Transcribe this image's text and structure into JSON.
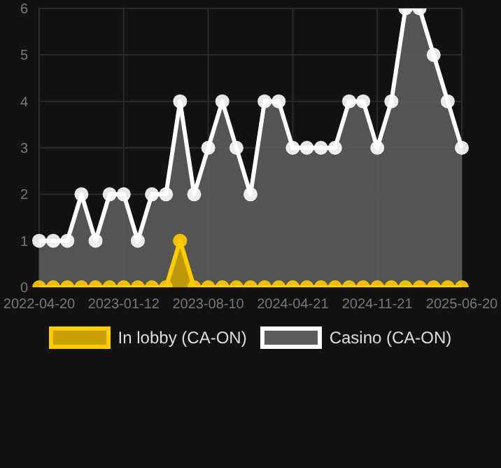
{
  "chart_data": {
    "type": "area",
    "categories": [
      "2022-04-20",
      null,
      null,
      null,
      null,
      null,
      "2023-01-12",
      null,
      null,
      null,
      null,
      null,
      "2023-08-10",
      null,
      null,
      null,
      null,
      null,
      "2024-04-21",
      null,
      null,
      null,
      null,
      null,
      "2024-11-21",
      null,
      null,
      null,
      null,
      null,
      "2025-06-20"
    ],
    "series": [
      {
        "name": "In lobby (CA-ON)",
        "color": "#ffcc00",
        "values": [
          0,
          0,
          0,
          0,
          0,
          0,
          0,
          0,
          0,
          0,
          1,
          0,
          0,
          0,
          0,
          0,
          0,
          0,
          0,
          0,
          0,
          0,
          0,
          0,
          0,
          0,
          0,
          0,
          0,
          0,
          0
        ]
      },
      {
        "name": "Casino (CA-ON)",
        "color": "#ffffff",
        "values": [
          1,
          1,
          1,
          2,
          1,
          2,
          2,
          1,
          2,
          2,
          4,
          2,
          3,
          4,
          3,
          2,
          4,
          4,
          3,
          3,
          3,
          3,
          4,
          4,
          3,
          4,
          6,
          6,
          5,
          4,
          3
        ]
      }
    ],
    "ylim": [
      0,
      6
    ],
    "yticks": [
      0,
      1,
      2,
      3,
      4,
      5,
      6
    ],
    "grid": true,
    "legend": "bottom",
    "marker": "circle"
  }
}
